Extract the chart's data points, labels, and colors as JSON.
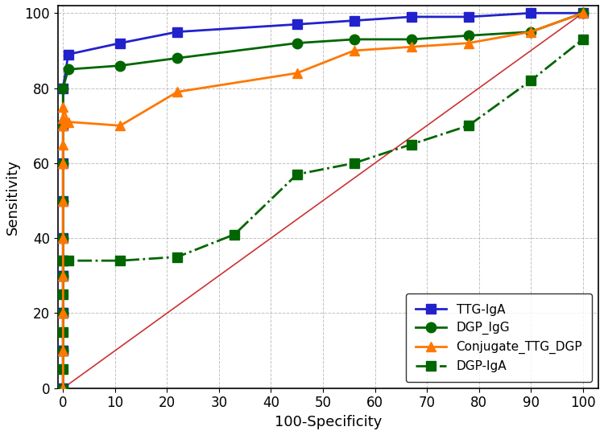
{
  "TTG_IgA": {
    "x": [
      0,
      0,
      0,
      0,
      0,
      0,
      0,
      0,
      0,
      1,
      11,
      22,
      45,
      56,
      67,
      78,
      90,
      100
    ],
    "y": [
      0,
      10,
      20,
      30,
      40,
      50,
      60,
      70,
      80,
      89,
      92,
      95,
      97,
      98,
      99,
      99,
      100,
      100
    ],
    "color": "#2222cc",
    "marker": "s",
    "markersize": 9,
    "linewidth": 2.0,
    "linestyle": "-",
    "label": "TTG-IgA"
  },
  "DGP_IgG": {
    "x": [
      0,
      0,
      0,
      0,
      0,
      0,
      0,
      0,
      0,
      1,
      11,
      22,
      45,
      56,
      67,
      78,
      90,
      100
    ],
    "y": [
      0,
      10,
      20,
      30,
      40,
      50,
      60,
      70,
      80,
      85,
      86,
      88,
      92,
      93,
      93,
      94,
      95,
      100
    ],
    "color": "#006600",
    "marker": "o",
    "markersize": 9,
    "linewidth": 2.0,
    "linestyle": "-",
    "label": "DGP_IgG"
  },
  "Conjugate_TTG_DGP": {
    "x": [
      0,
      0,
      0,
      0,
      0,
      0,
      0,
      0,
      0,
      0,
      0,
      1,
      11,
      22,
      45,
      56,
      67,
      78,
      90,
      100
    ],
    "y": [
      0,
      10,
      20,
      30,
      40,
      50,
      60,
      65,
      70,
      72,
      75,
      71,
      70,
      79,
      84,
      90,
      91,
      92,
      95,
      100
    ],
    "color": "#ff7700",
    "marker": "^",
    "markersize": 9,
    "linewidth": 2.0,
    "linestyle": "-",
    "label": "Conjugate_TTG_DGP"
  },
  "DGP_IgA": {
    "x": [
      0,
      0,
      0,
      0,
      0,
      0,
      0,
      0,
      0,
      1,
      11,
      22,
      33,
      45,
      56,
      67,
      78,
      90,
      100
    ],
    "y": [
      0,
      5,
      10,
      15,
      20,
      25,
      30,
      34,
      34,
      34,
      34,
      35,
      41,
      57,
      60,
      65,
      70,
      82,
      93
    ],
    "color": "#006600",
    "marker": "s",
    "markersize": 9,
    "linewidth": 2.0,
    "linestyle": "-.",
    "label": "DGP-IgA"
  },
  "reference_line": {
    "x": [
      0,
      100
    ],
    "y": [
      0,
      100
    ],
    "color": "#cc3333",
    "linewidth": 1.2,
    "linestyle": "-"
  },
  "xlim": [
    -1,
    103
  ],
  "ylim": [
    0,
    102
  ],
  "xlabel": "100-Specificity",
  "ylabel": "Sensitivity",
  "xticks": [
    0,
    10,
    20,
    30,
    40,
    50,
    60,
    70,
    80,
    90,
    100
  ],
  "yticks": [
    0,
    20,
    40,
    60,
    80,
    100
  ],
  "grid_color": "#bbbbbb",
  "grid_linestyle": "--",
  "background_color": "#ffffff",
  "legend_loc": "lower right",
  "legend_fontsize": 11,
  "axis_fontsize": 13,
  "tick_fontsize": 12,
  "fig_width": 7.5,
  "fig_height": 5.41,
  "dpi": 100
}
